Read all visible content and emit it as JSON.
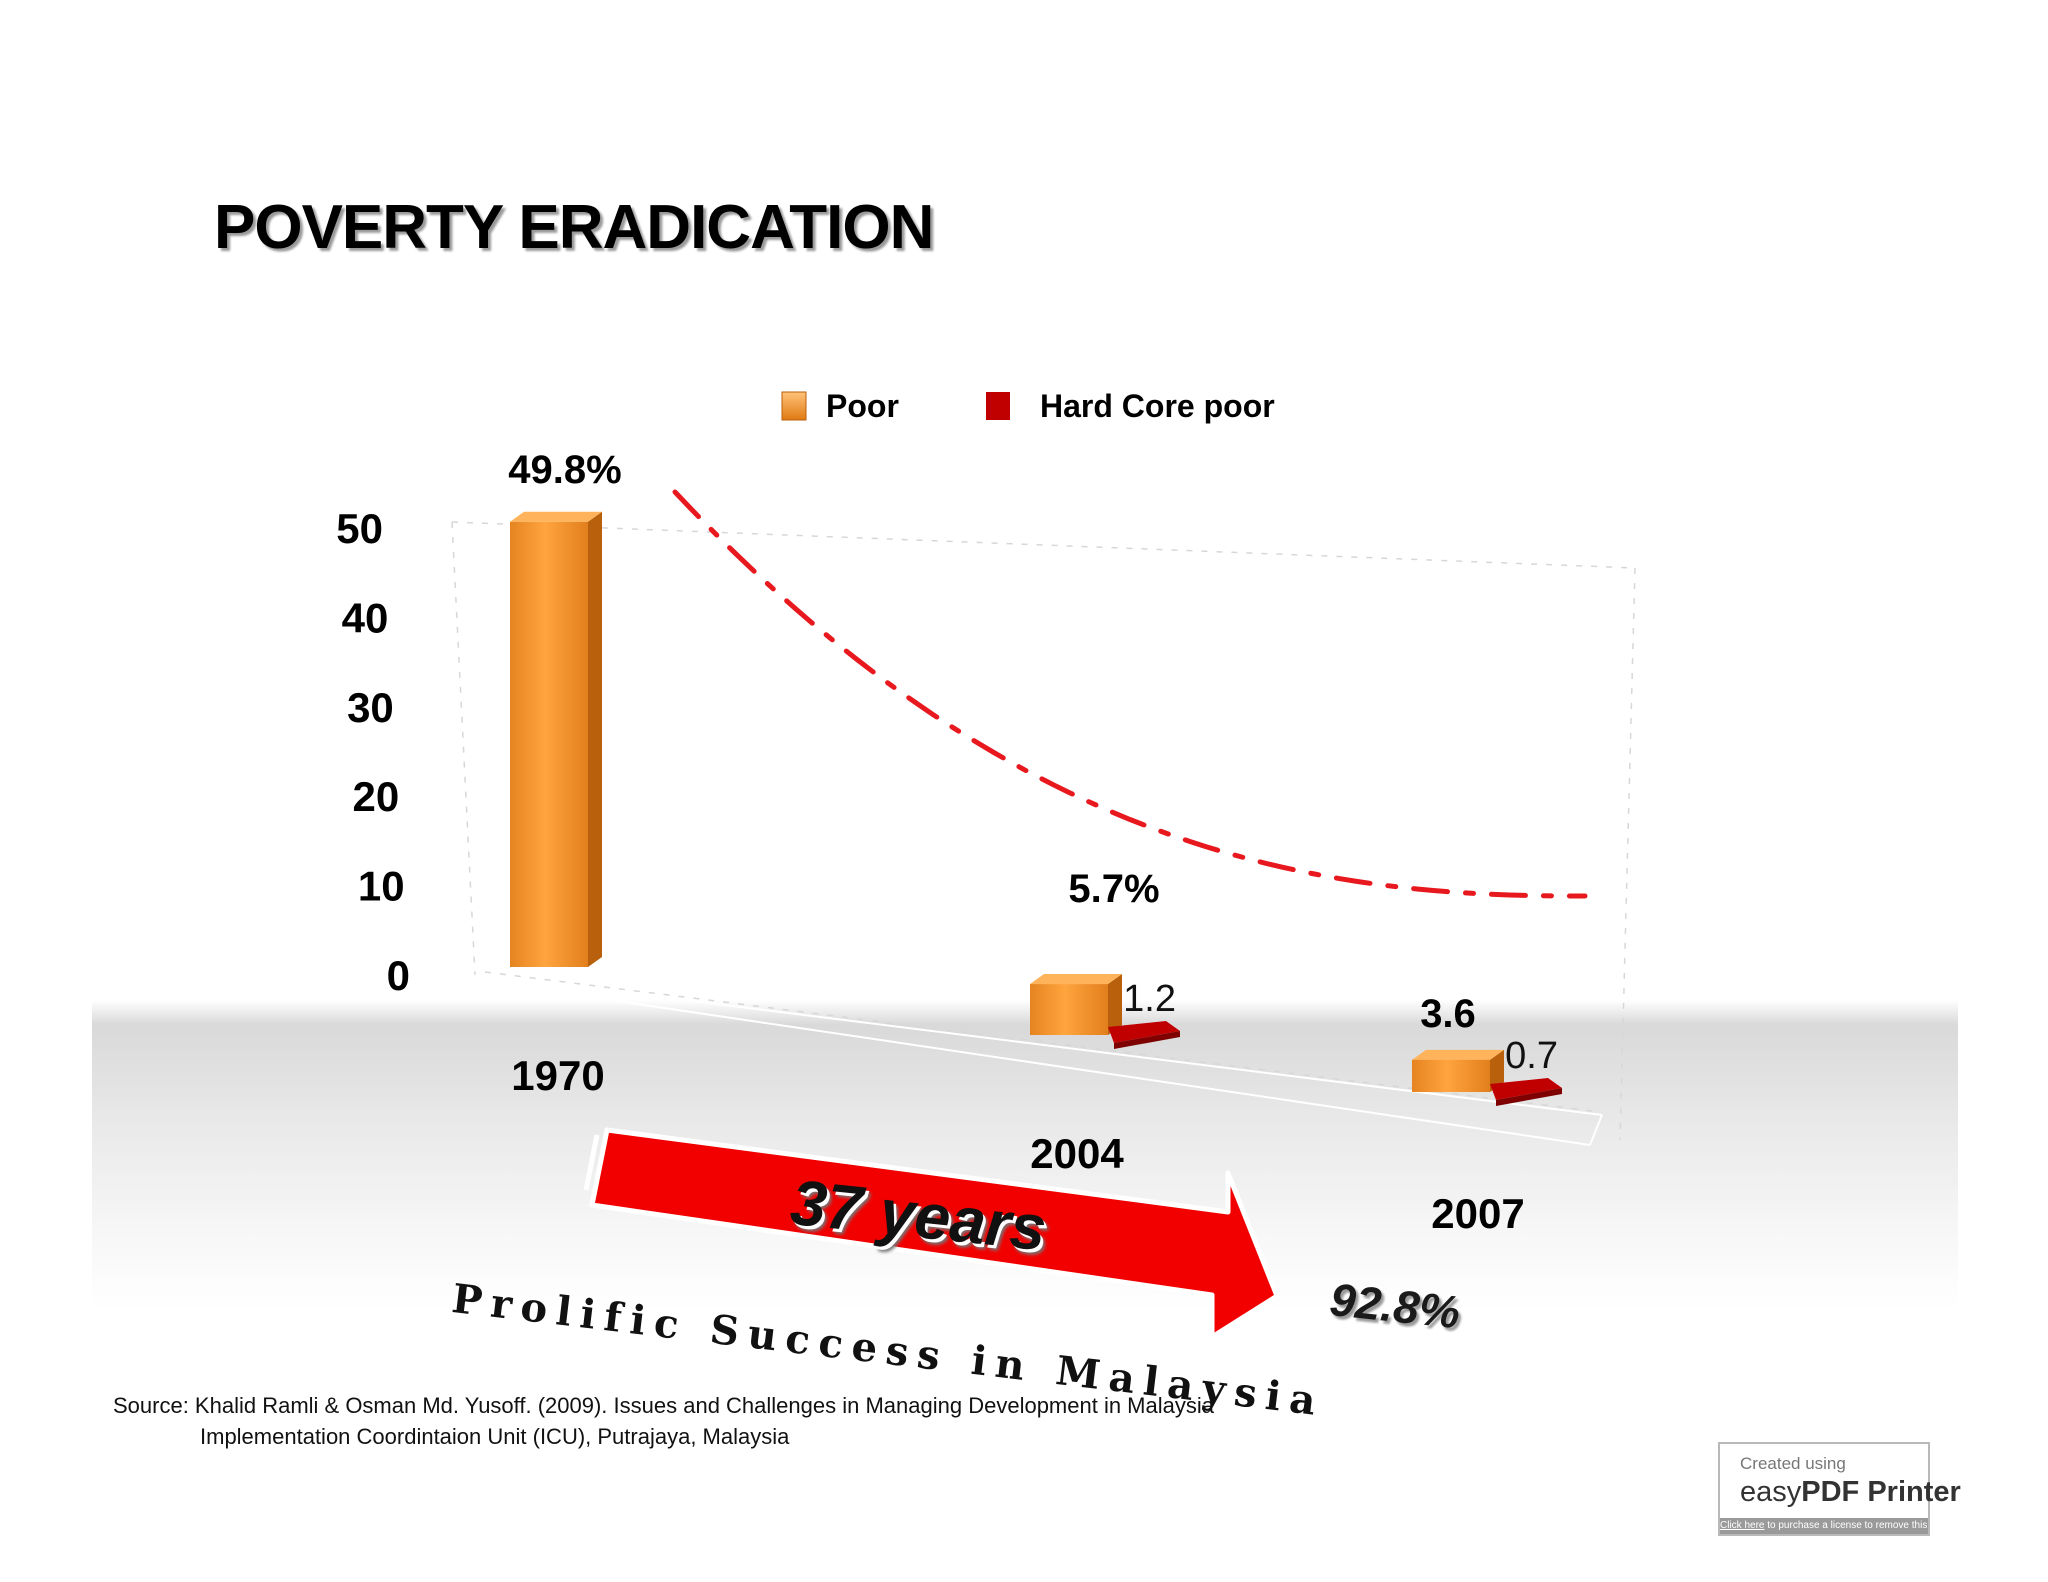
{
  "title": "POVERTY ERADICATION",
  "chart_data": {
    "type": "bar",
    "categories": [
      "1970",
      "2004",
      "2007"
    ],
    "series": [
      {
        "name": "Poor",
        "values": [
          49.8,
          5.7,
          3.6
        ],
        "labels": [
          "49.8%",
          "5.7%",
          "3.6"
        ],
        "color": "#f39a32"
      },
      {
        "name": "Hard Core poor",
        "values": [
          null,
          1.2,
          0.7
        ],
        "labels": [
          "",
          "1.2",
          "0.7"
        ],
        "color": "#c00000"
      }
    ],
    "yticks": [
      "0",
      "10",
      "20",
      "30",
      "40",
      "50"
    ],
    "ylim": [
      0,
      50
    ],
    "legend_position": "top",
    "trend_line_color": "#e8191e"
  },
  "annotations": {
    "years": "37 years",
    "slogan": "Prolific Success in Malaysia",
    "reduction": "92.8%"
  },
  "source": {
    "line1": "Source: Khalid Ramli & Osman Md. Yusoff. (2009). Issues and Challenges in Managing Development in Malaysia",
    "line2": "Implementation Coordintaion Unit (ICU), Putrajaya, Malaysia"
  },
  "watermark": {
    "created": "Created using",
    "brand_light": "easy",
    "brand_bold": "PDF Printer",
    "link": "Click here",
    "link_rest": " to purchase a license to remove this image"
  }
}
